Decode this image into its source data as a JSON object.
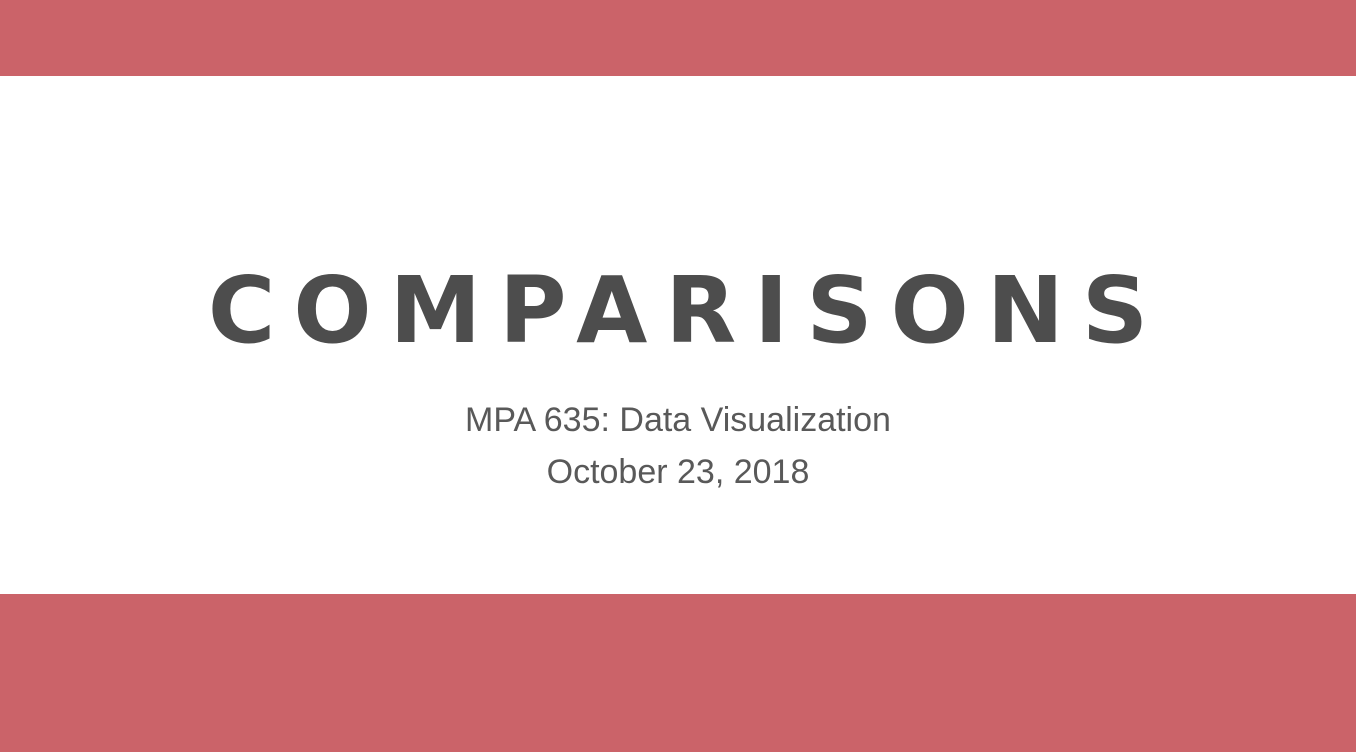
{
  "slide": {
    "title": "COMPARISONS",
    "course": "MPA 635: Data Visualization",
    "date": "October 23, 2018"
  },
  "colors": {
    "band": "#cb6369",
    "background": "#ffffff",
    "title_text": "#4d4d4d",
    "subtitle_text": "#595959"
  }
}
